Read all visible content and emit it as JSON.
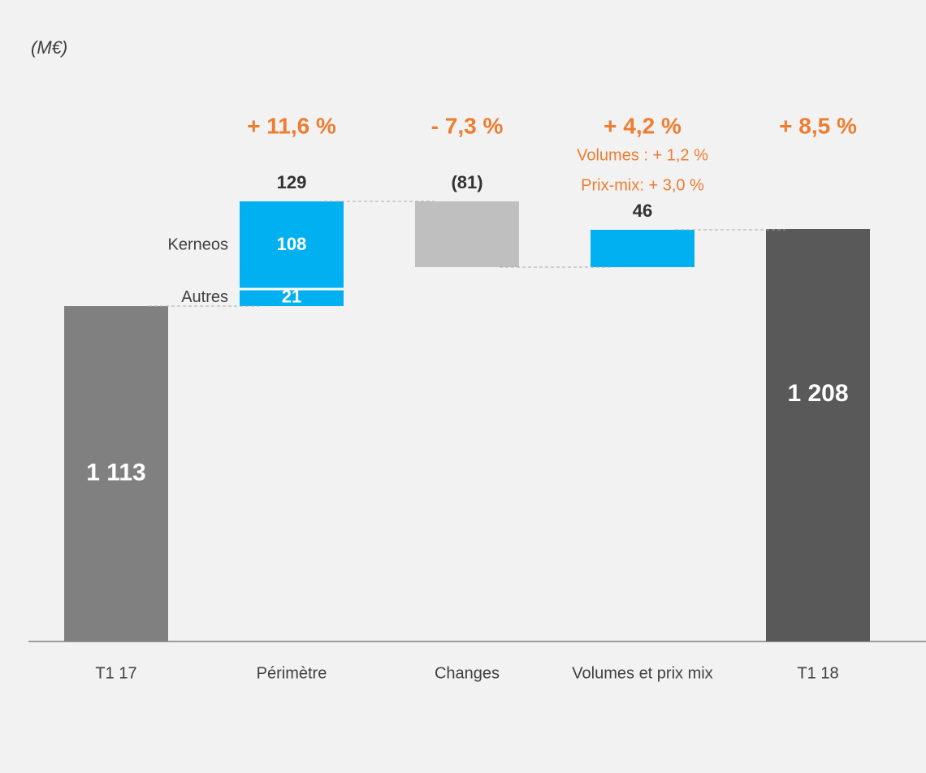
{
  "chart_data": {
    "type": "waterfall",
    "unit": "(M€)",
    "categories": [
      "T1 17",
      "Périmètre",
      "Changes",
      "Volumes et prix mix",
      "T1 18"
    ],
    "kinds": [
      "total",
      "delta",
      "delta",
      "delta",
      "total"
    ],
    "values": [
      1113,
      129,
      -81,
      46,
      1208
    ],
    "value_labels": [
      "1 113",
      "129",
      "(81)",
      "46",
      "1 208"
    ],
    "colors": [
      "#808080",
      "#00b0f0",
      "#bfbfbf",
      "#00b0f0",
      "#595959"
    ],
    "segments": [
      null,
      [
        {
          "name": "Autres",
          "value": 21
        },
        {
          "name": "Kerneos",
          "value": 108
        }
      ],
      null,
      null,
      null
    ],
    "growth_labels": [
      null,
      "+ 11,6 %",
      "- 7,3 %",
      "+ 4,2 %",
      "+ 8,5 %"
    ],
    "growth_details": [
      null,
      null,
      null,
      [
        "Volumes : + 1,2 %",
        "Prix-mix:  + 3,0 %"
      ],
      null
    ],
    "accent_color": "#ed7d31",
    "ylim": [
      700,
      1480
    ]
  }
}
